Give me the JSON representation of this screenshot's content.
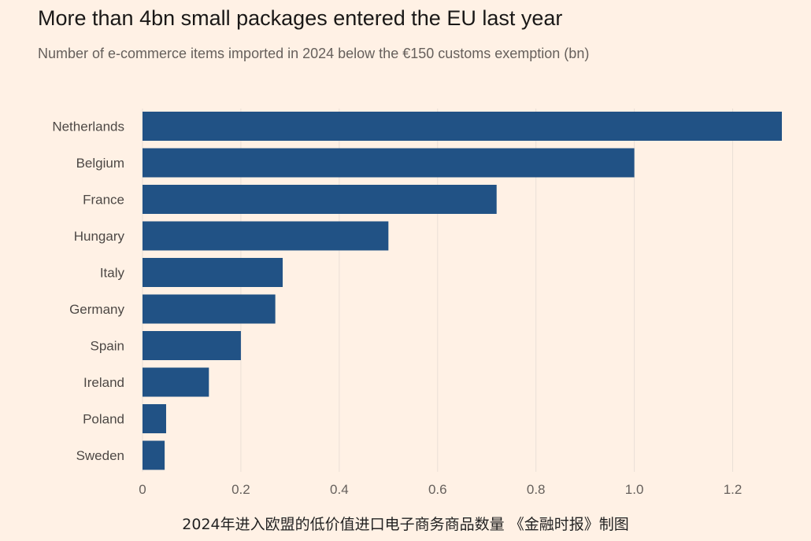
{
  "title": "More than 4bn small packages entered the EU last year",
  "subtitle": "Number of e-commerce items imported in 2024 below the €150 customs exemption (bn)",
  "caption": "2024年进入欧盟的低价值进口电子商务商品数量 《金融时报》制图",
  "colors": {
    "bar": "#215285",
    "background": "#fff1e5",
    "grid": "#eadfd6",
    "label": "#4d4845",
    "tick": "#66605c"
  },
  "chart_data": {
    "type": "bar",
    "orientation": "horizontal",
    "title": "More than 4bn small packages entered the EU last year",
    "subtitle": "Number of e-commerce items imported in 2024 below the €150 customs exemption (bn)",
    "categories": [
      "Netherlands",
      "Belgium",
      "France",
      "Hungary",
      "Italy",
      "Germany",
      "Spain",
      "Ireland",
      "Poland",
      "Sweden"
    ],
    "values": [
      1.3,
      1.0,
      0.72,
      0.5,
      0.285,
      0.27,
      0.2,
      0.135,
      0.048,
      0.045
    ],
    "xlim": [
      0,
      1.3
    ],
    "xticks": [
      0,
      0.2,
      0.4,
      0.6,
      0.8,
      1.0,
      1.2
    ],
    "xtick_labels": [
      "0",
      "0.2",
      "0.4",
      "0.6",
      "0.8",
      "1.0",
      "1.2"
    ],
    "xlabel": "",
    "ylabel": "",
    "grid": true
  }
}
